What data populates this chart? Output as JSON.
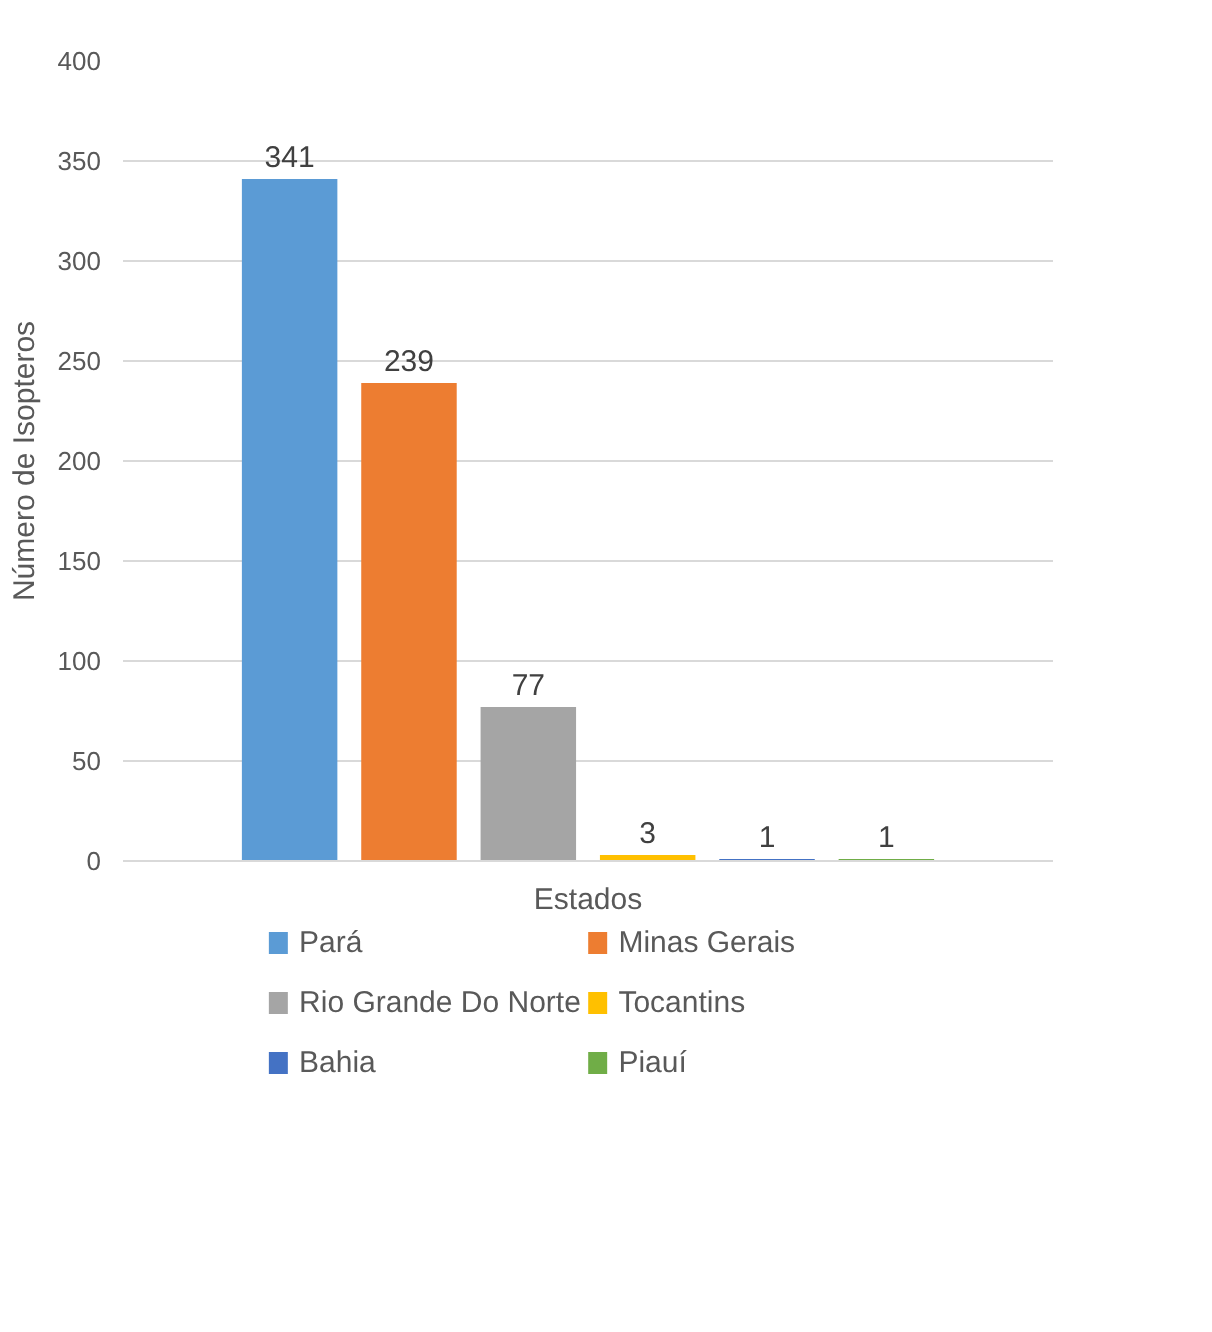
{
  "chart_data": {
    "type": "bar",
    "xlabel": "Estados",
    "ylabel": "Número de Isopteros",
    "categories": [
      null
    ],
    "series": [
      {
        "name": "Pará",
        "color": "#5b9bd5",
        "values": [
          341
        ]
      },
      {
        "name": "Minas Gerais",
        "color": "#ed7d31",
        "values": [
          239
        ]
      },
      {
        "name": "Rio Grande Do Norte",
        "color": "#a5a5a5",
        "values": [
          77
        ]
      },
      {
        "name": "Tocantins",
        "color": "#ffc000",
        "values": [
          3
        ]
      },
      {
        "name": "Bahia",
        "color": "#4472c4",
        "values": [
          1
        ]
      },
      {
        "name": "Piauí",
        "color": "#70ad47",
        "values": [
          1
        ]
      }
    ],
    "ylim": [
      0,
      400
    ],
    "yticks": [
      0,
      50,
      100,
      150,
      200,
      250,
      300,
      350,
      400
    ],
    "grid": "y",
    "legend": "bottom",
    "data_labels": true
  }
}
